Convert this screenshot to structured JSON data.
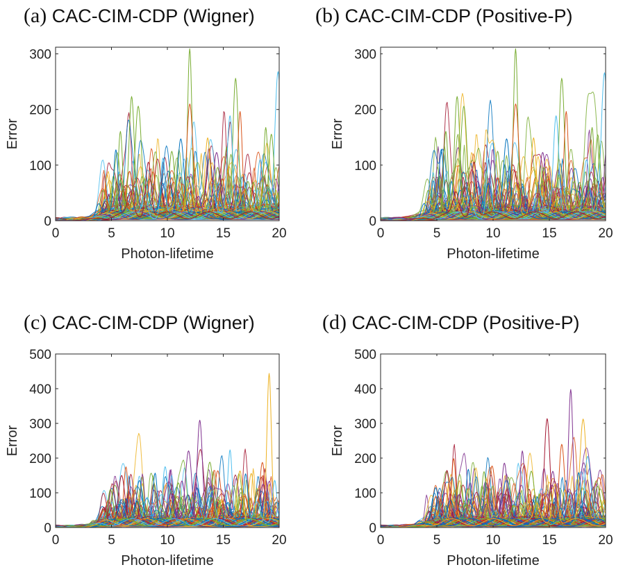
{
  "chart_data": [
    {
      "type": "line",
      "panel": "(a)",
      "title": "CAC-CIM-CDP (Wigner)",
      "xlabel": "Photon-lifetime",
      "ylabel": "Error",
      "xlim": [
        0,
        20
      ],
      "ylim": [
        0,
        312
      ],
      "xticks": [
        "0",
        "5",
        "10",
        "15",
        "20"
      ],
      "yticks": [
        "0",
        "100",
        "200",
        "300"
      ],
      "grid": false,
      "trajectories_approx": 150,
      "peaks": [
        {
          "x": 5.8,
          "y": 160,
          "color": "#77ac30"
        },
        {
          "x": 6.8,
          "y": 220,
          "color": "#77ac30"
        },
        {
          "x": 7.4,
          "y": 197,
          "color": "#77ac30"
        },
        {
          "x": 12.0,
          "y": 312,
          "color": "#77ac30"
        },
        {
          "x": 16.1,
          "y": 253,
          "color": "#77ac30"
        },
        {
          "x": 12.0,
          "y": 205,
          "color": "#d95319"
        },
        {
          "x": 16.5,
          "y": 190,
          "color": "#d95319"
        },
        {
          "x": 15.6,
          "y": 180,
          "color": "#4dbeee"
        },
        {
          "x": 19.9,
          "y": 270,
          "color": "#4dbeee"
        },
        {
          "x": 18.8,
          "y": 165,
          "color": "#77ac30"
        },
        {
          "x": 19.3,
          "y": 158,
          "color": "#77ac30"
        },
        {
          "x": 11.2,
          "y": 150,
          "color": "#0072bd"
        },
        {
          "x": 5.4,
          "y": 120,
          "color": "#0072bd"
        },
        {
          "x": 13.6,
          "y": 152,
          "color": "#edb120"
        },
        {
          "x": 14.4,
          "y": 115,
          "color": "#7e2f8e"
        },
        {
          "x": 9.6,
          "y": 110,
          "color": "#4dbeee"
        },
        {
          "x": 8.3,
          "y": 108,
          "color": "#a2142f"
        }
      ]
    },
    {
      "type": "line",
      "panel": "(b)",
      "title": "CAC-CIM-CDP (Positive-P)",
      "xlabel": "Photon-lifetime",
      "ylabel": "Error",
      "xlim": [
        0,
        20
      ],
      "ylim": [
        0,
        312
      ],
      "xticks": [
        "0",
        "5",
        "10",
        "15",
        "20"
      ],
      "yticks": [
        "0",
        "100",
        "200",
        "300"
      ],
      "grid": false,
      "trajectories_approx": 150,
      "peaks": [
        {
          "x": 5.8,
          "y": 160,
          "color": "#77ac30"
        },
        {
          "x": 6.8,
          "y": 220,
          "color": "#77ac30"
        },
        {
          "x": 7.4,
          "y": 197,
          "color": "#77ac30"
        },
        {
          "x": 12.0,
          "y": 312,
          "color": "#77ac30"
        },
        {
          "x": 16.1,
          "y": 253,
          "color": "#77ac30"
        },
        {
          "x": 12.0,
          "y": 205,
          "color": "#d95319"
        },
        {
          "x": 16.5,
          "y": 190,
          "color": "#d95319"
        },
        {
          "x": 15.6,
          "y": 180,
          "color": "#4dbeee"
        },
        {
          "x": 19.9,
          "y": 268,
          "color": "#4dbeee"
        },
        {
          "x": 18.8,
          "y": 165,
          "color": "#77ac30"
        },
        {
          "x": 19.3,
          "y": 157,
          "color": "#77ac30"
        },
        {
          "x": 11.2,
          "y": 150,
          "color": "#0072bd"
        },
        {
          "x": 5.4,
          "y": 121,
          "color": "#0072bd"
        },
        {
          "x": 13.6,
          "y": 152,
          "color": "#edb120"
        },
        {
          "x": 14.4,
          "y": 115,
          "color": "#7e2f8e"
        },
        {
          "x": 9.6,
          "y": 110,
          "color": "#4dbeee"
        },
        {
          "x": 8.3,
          "y": 108,
          "color": "#a2142f"
        }
      ]
    },
    {
      "type": "line",
      "panel": "(c)",
      "title": "CAC-CIM-CDP (Wigner)",
      "xlabel": "Photon-lifetime",
      "ylabel": "Error",
      "xlim": [
        0,
        20
      ],
      "ylim": [
        0,
        500
      ],
      "xticks": [
        "0",
        "5",
        "10",
        "15",
        "20"
      ],
      "yticks": [
        "0",
        "100",
        "200",
        "300",
        "400",
        "500"
      ],
      "grid": false,
      "trajectories_approx": 150,
      "peaks": [
        {
          "x": 19.1,
          "y": 430,
          "color": "#edb120"
        },
        {
          "x": 12.9,
          "y": 312,
          "color": "#7e2f8e"
        },
        {
          "x": 11.9,
          "y": 218,
          "color": "#7e2f8e"
        },
        {
          "x": 15.6,
          "y": 228,
          "color": "#4dbeee"
        },
        {
          "x": 18.5,
          "y": 190,
          "color": "#d95319"
        },
        {
          "x": 13.8,
          "y": 185,
          "color": "#77ac30"
        },
        {
          "x": 6.3,
          "y": 178,
          "color": "#d95319"
        },
        {
          "x": 9.8,
          "y": 180,
          "color": "#4dbeee"
        },
        {
          "x": 5.9,
          "y": 152,
          "color": "#a2142f"
        },
        {
          "x": 8.9,
          "y": 160,
          "color": "#0072bd"
        },
        {
          "x": 4.9,
          "y": 110,
          "color": "#77ac30"
        },
        {
          "x": 7.5,
          "y": 140,
          "color": "#0072bd"
        },
        {
          "x": 17.0,
          "y": 150,
          "color": "#0072bd"
        },
        {
          "x": 16.5,
          "y": 160,
          "color": "#edb120"
        },
        {
          "x": 14.5,
          "y": 150,
          "color": "#d95319"
        },
        {
          "x": 19.6,
          "y": 140,
          "color": "#4dbeee"
        },
        {
          "x": 11.0,
          "y": 125,
          "color": "#77ac30"
        }
      ]
    },
    {
      "type": "line",
      "panel": "(d)",
      "title": "CAC-CIM-CDP (Positive-P)",
      "xlabel": "Photon-lifetime",
      "ylabel": "Error",
      "xlim": [
        0,
        20
      ],
      "ylim": [
        0,
        500
      ],
      "xticks": [
        "0",
        "5",
        "10",
        "15",
        "20"
      ],
      "yticks": [
        "0",
        "100",
        "200",
        "300",
        "400",
        "500"
      ],
      "grid": false,
      "trajectories_approx": 150,
      "peaks": [
        {
          "x": 16.9,
          "y": 397,
          "color": "#7e2f8e"
        },
        {
          "x": 14.8,
          "y": 300,
          "color": "#a2142f"
        },
        {
          "x": 18.0,
          "y": 298,
          "color": "#edb120"
        },
        {
          "x": 12.6,
          "y": 222,
          "color": "#7e2f8e"
        },
        {
          "x": 16.1,
          "y": 235,
          "color": "#d95319"
        },
        {
          "x": 18.4,
          "y": 210,
          "color": "#4dbeee"
        },
        {
          "x": 6.5,
          "y": 203,
          "color": "#d95319"
        },
        {
          "x": 11.0,
          "y": 175,
          "color": "#7e2f8e"
        },
        {
          "x": 9.9,
          "y": 175,
          "color": "#d95319"
        },
        {
          "x": 7.8,
          "y": 165,
          "color": "#0072bd"
        },
        {
          "x": 5.9,
          "y": 150,
          "color": "#a2142f"
        },
        {
          "x": 13.4,
          "y": 150,
          "color": "#77ac30"
        },
        {
          "x": 9.2,
          "y": 150,
          "color": "#77ac30"
        },
        {
          "x": 4.9,
          "y": 105,
          "color": "#0072bd"
        },
        {
          "x": 19.3,
          "y": 110,
          "color": "#77ac30"
        },
        {
          "x": 17.6,
          "y": 145,
          "color": "#0072bd"
        },
        {
          "x": 15.5,
          "y": 130,
          "color": "#edb120"
        }
      ]
    }
  ],
  "palette": [
    "#0072bd",
    "#d95319",
    "#edb120",
    "#7e2f8e",
    "#77ac30",
    "#4dbeee",
    "#a2142f"
  ]
}
